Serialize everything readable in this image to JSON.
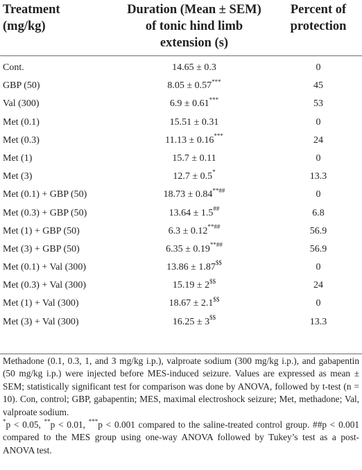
{
  "header": {
    "treatment": [
      "Treatment",
      "(mg/kg)"
    ],
    "duration": [
      "Duration (Mean ± SEM)",
      "of tonic hind limb",
      "extension (s)"
    ],
    "protection": [
      "Percent of",
      "protection"
    ]
  },
  "rows": [
    {
      "treatment": "Cont.",
      "value": "14.65 ± 0.3",
      "sig": "",
      "protection": "0"
    },
    {
      "treatment": "GBP (50)",
      "value": "8.05 ± 0.57",
      "sig": "***",
      "protection": "45"
    },
    {
      "treatment": "Val (300)",
      "value": "6.9 ± 0.61",
      "sig": "***",
      "protection": "53"
    },
    {
      "treatment": "Met (0.1)",
      "value": "15.51 ± 0.31",
      "sig": "",
      "protection": "0"
    },
    {
      "treatment": "Met (0.3)",
      "value": "11.13 ± 0.16",
      "sig": "***",
      "protection": "24"
    },
    {
      "treatment": "Met (1)",
      "value": "15.7 ± 0.11",
      "sig": "",
      "protection": "0"
    },
    {
      "treatment": "Met (3)",
      "value": "12.7 ± 0.5",
      "sig": "*",
      "protection": "13.3"
    },
    {
      "treatment": "Met (0.1) + GBP (50)",
      "value": "18.73 ± 0.84",
      "sig": "**##",
      "protection": "0"
    },
    {
      "treatment": "Met (0.3) + GBP (50)",
      "value": "13.64 ± 1.5",
      "sig": "##",
      "protection": "6.8"
    },
    {
      "treatment": "Met (1) + GBP (50)",
      "value": "6.3 ± 0.12",
      "sig": "**##",
      "protection": "56.9"
    },
    {
      "treatment": "Met (3) + GBP (50)",
      "value": "6.35 ± 0.19",
      "sig": "**##",
      "protection": "56.9"
    },
    {
      "treatment": "Met (0.1) + Val (300)",
      "value": "13.86 ± 1.87",
      "sig": "$$",
      "protection": "0"
    },
    {
      "treatment": "Met (0.3) + Val (300)",
      "value": "15.19 ± 2",
      "sig": "$$",
      "protection": "24"
    },
    {
      "treatment": "Met (1) + Val (300)",
      "value": "18.67 ± 2.1",
      "sig": "$$",
      "protection": "0"
    },
    {
      "treatment": "Met (3) + Val (300)",
      "value": "16.25 ± 3",
      "sig": "$$",
      "protection": "13.3"
    }
  ],
  "footnotes": {
    "description": "Methadone (0.1, 0.3, 1, and 3 mg/kg i.p.), valproate sodium (300 mg/kg i.p.), and gabapentin (50 mg/kg i.p.) were injected before MES-induced seizure. Values are expressed as mean ± SEM; statistically significant test for comparison was done by ANOVA, followed by t-test (n = 10). Con, control; GBP, gabapentin; MES, maximal electroshock seizure; Met, methadone; Val, valproate sodium.",
    "sig_mark_1": "*",
    "sig_text_1": "p < 0.05, ",
    "sig_mark_2": "**",
    "sig_text_2": "p < 0.01, ",
    "sig_mark_3": "***",
    "sig_text_3": "p < 0.001 compared to the saline-treated control group. ##p < 0.001 compared to the MES group using one-way ANOVA followed by Tukey’s test as a post-ANOVA test."
  }
}
